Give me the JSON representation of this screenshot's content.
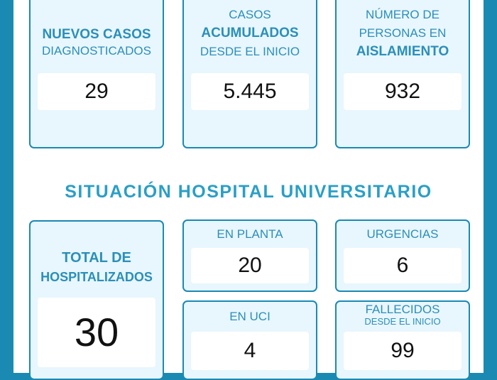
{
  "top_cards": [
    {
      "label_lines": [
        "NUEVOS CASOS",
        "DIAGNOSTICADOS"
      ],
      "value": "29"
    },
    {
      "label_lines": [
        "CASOS",
        "ACUMULADOS",
        "DESDE EL INICIO"
      ],
      "value": "5.445"
    },
    {
      "label_lines": [
        "NÚMERO DE",
        "PERSONAS EN",
        "AISLAMIENTO"
      ],
      "value": "932"
    }
  ],
  "section_title": "SITUACIÓN HOSPITAL UNIVERSITARIO",
  "hospital": {
    "total": {
      "label_lines": [
        "TOTAL DE",
        "HOSPITALIZADOS"
      ],
      "value": "30"
    },
    "planta": {
      "label": "EN PLANTA",
      "value": "20"
    },
    "urgencias": {
      "label": "URGENCIAS",
      "value": "6"
    },
    "uci": {
      "label": "EN UCI",
      "value": "4"
    },
    "fallecidos": {
      "label_lines": [
        "FALLECIDOS",
        "DESDE EL INICIO"
      ],
      "value": "99"
    }
  },
  "colors": {
    "accent": "#1a8ab3",
    "label": "#2b8fb8",
    "card_bg": "#e8f6fd",
    "title": "#2a9fc6"
  }
}
